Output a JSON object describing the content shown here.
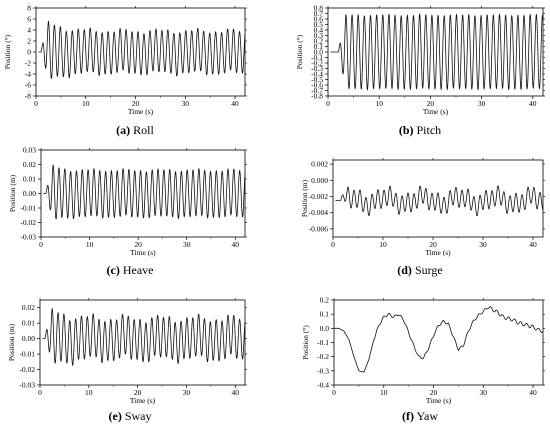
{
  "chart_data": [
    {
      "type": "line",
      "caption_letter": "(a)",
      "caption_text": " Roll",
      "xlabel": "Time (s)",
      "ylabel": "Position (°)",
      "xlim": [
        0,
        42
      ],
      "ylim": [
        -8,
        8
      ],
      "xticks": [
        0,
        10,
        20,
        30,
        40
      ],
      "yticks": [
        -8,
        -6,
        -4,
        -2,
        0,
        2,
        4,
        6,
        8
      ],
      "ytick_labels": [
        "-8",
        "-6",
        "-4",
        "-2",
        "0",
        "2",
        "4",
        "6",
        "8"
      ],
      "series": [
        {
          "period_s": 1.2,
          "start_s": 1.0,
          "peak_amplitude": 6.2,
          "steady_amplitude": 3.8,
          "settle_s": 9,
          "offset": 0,
          "noise": 0.35
        }
      ]
    },
    {
      "type": "line",
      "caption_letter": "(b)",
      "caption_text": " Pitch",
      "xlabel": "Time (s)",
      "ylabel": "Position (°)",
      "xlim": [
        0,
        42
      ],
      "ylim": [
        -0.8,
        0.8
      ],
      "xticks": [
        0,
        10,
        20,
        30,
        40
      ],
      "yticks": [
        -0.8,
        -0.7,
        -0.6,
        -0.5,
        -0.4,
        -0.3,
        -0.2,
        -0.1,
        0.0,
        0.1,
        0.2,
        0.3,
        0.4,
        0.5,
        0.6,
        0.7,
        0.8
      ],
      "ytick_labels": [
        "-0.8",
        "-0.7",
        "-0.6",
        "-0.5",
        "-0.4",
        "-0.3",
        "-0.2",
        "-0.1",
        "0.0",
        "0.1",
        "0.2",
        "0.3",
        "0.4",
        "0.5",
        "0.6",
        "0.7",
        "0.8"
      ],
      "series": [
        {
          "period_s": 1.2,
          "start_s": 2.0,
          "peak_amplitude": 0.67,
          "steady_amplitude": 0.67,
          "settle_s": 6,
          "offset": 0,
          "noise": 0.01
        }
      ]
    },
    {
      "type": "line",
      "caption_letter": "(c)",
      "caption_text": " Heave",
      "xlabel": "Time (s)",
      "ylabel": "Position (m)",
      "xlim": [
        0,
        42
      ],
      "ylim": [
        -0.03,
        0.03
      ],
      "xticks": [
        0,
        10,
        20,
        30,
        40
      ],
      "yticks": [
        -0.03,
        -0.02,
        -0.01,
        0.0,
        0.01,
        0.02,
        0.03
      ],
      "ytick_labels": [
        "-0.03",
        "-0.02",
        "-0.01",
        "0.00",
        "0.01",
        "0.02",
        "0.03"
      ],
      "series": [
        {
          "period_s": 1.2,
          "start_s": 1.0,
          "peak_amplitude": 0.023,
          "steady_amplitude": 0.016,
          "settle_s": 5,
          "offset": 0,
          "noise": 0.0008
        }
      ]
    },
    {
      "type": "line",
      "caption_letter": "(d)",
      "caption_text": " Surge",
      "xlabel": "Time (s)",
      "ylabel": "Position (m)",
      "xlim": [
        0,
        42
      ],
      "ylim": [
        -0.007,
        0.0025
      ],
      "xticks": [
        0,
        10,
        20,
        30,
        40
      ],
      "yticks": [
        -0.006,
        -0.004,
        -0.002,
        0.0,
        0.002
      ],
      "ytick_labels": [
        "-0.006",
        "-0.004",
        "-0.002",
        "0.000",
        "0.002"
      ],
      "series": [
        {
          "period_s": 1.2,
          "start_s": 1.5,
          "peak_amplitude": 0.0013,
          "steady_amplitude": 0.0011,
          "settle_s": 4,
          "offset": -0.0025,
          "noise": 0.0005
        }
      ]
    },
    {
      "type": "line",
      "caption_letter": "(e)",
      "caption_text": " Sway",
      "xlabel": "Time (s)",
      "ylabel": "Position (m)",
      "xlim": [
        0,
        42
      ],
      "ylim": [
        -0.03,
        0.025
      ],
      "xticks": [
        0,
        10,
        20,
        30,
        40
      ],
      "yticks": [
        -0.03,
        -0.02,
        -0.01,
        0.0,
        0.01,
        0.02
      ],
      "ytick_labels": [
        "-0.03",
        "-0.02",
        "-0.01",
        "0.00",
        "0.01",
        "0.02"
      ],
      "series": [
        {
          "period_s": 1.2,
          "start_s": 1.0,
          "peak_amplitude": 0.02,
          "steady_amplitude": 0.013,
          "settle_s": 10,
          "offset": 0,
          "noise": 0.002
        }
      ]
    },
    {
      "type": "line",
      "caption_letter": "(f)",
      "caption_text": " Yaw",
      "xlabel": "Time (s)",
      "ylabel": "Position (°)",
      "xlim": [
        0,
        42
      ],
      "ylim": [
        -0.4,
        0.2
      ],
      "xticks": [
        0,
        10,
        20,
        30,
        40
      ],
      "yticks": [
        -0.4,
        -0.3,
        -0.2,
        -0.1,
        0.0,
        0.1,
        0.2
      ],
      "ytick_labels": [
        "-0.4",
        "-0.3",
        "-0.2",
        "-0.1",
        "0.0",
        "0.1",
        "0.2"
      ],
      "series": [
        {
          "name": "",
          "x": [
            0,
            1,
            2,
            3,
            4,
            5,
            6,
            7,
            8,
            9,
            10,
            11,
            12,
            13,
            14,
            15,
            16,
            17,
            18,
            19,
            20,
            21,
            22,
            23,
            24,
            25,
            26,
            27,
            28,
            29,
            30,
            31,
            32,
            33,
            34,
            35,
            36,
            37,
            38,
            39,
            40,
            41,
            42
          ],
          "y": [
            0.0,
            0.0,
            -0.02,
            -0.08,
            -0.2,
            -0.3,
            -0.31,
            -0.22,
            -0.08,
            0.02,
            0.08,
            0.1,
            0.08,
            0.1,
            0.06,
            -0.03,
            -0.12,
            -0.2,
            -0.21,
            -0.14,
            -0.05,
            0.02,
            0.05,
            0.03,
            -0.06,
            -0.15,
            -0.12,
            -0.02,
            0.05,
            0.09,
            0.12,
            0.15,
            0.13,
            0.11,
            0.08,
            0.07,
            0.06,
            0.04,
            0.03,
            0.02,
            0.01,
            -0.01,
            -0.02
          ]
        }
      ]
    }
  ]
}
